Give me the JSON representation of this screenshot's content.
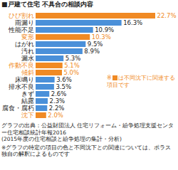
{
  "chart_data": {
    "type": "bar",
    "orientation": "horizontal",
    "title": "■戸建て住宅 不具合の相談内容",
    "categories": [
      "ひび割れ",
      "雨漏り",
      "性能不足",
      "変形",
      "はがれ",
      "汚れ",
      "漏水",
      "作動不良",
      "傾斜",
      "床鳴り",
      "排水不良",
      "きず",
      "結露",
      "腐食・腐朽",
      "沈下"
    ],
    "values": [
      22.7,
      16.3,
      10.9,
      10.3,
      9.5,
      8.9,
      5.3,
      5.1,
      5.0,
      3.6,
      3.5,
      2.6,
      2.3,
      2.2,
      2.0
    ],
    "value_labels": [
      "22.7%",
      "16.3%",
      "10.9%",
      "10.3%",
      "9.5%",
      "8.9%",
      "5.3%",
      "5.1%",
      "5.0%",
      "3.6%",
      "3.5%",
      "2.6%",
      "2.3%",
      "2.2%",
      "2.0%"
    ],
    "color": "#4a90d9",
    "colors": [
      "#f08a24",
      "#4a90d9",
      "#4a90d9",
      "#f08a24",
      "#4a90d9",
      "#4a90d9",
      "#4a90d9",
      "#f08a24",
      "#f08a24",
      "#4a90d9",
      "#4a90d9",
      "#4a90d9",
      "#4a90d9",
      "#4a90d9",
      "#f08a24"
    ],
    "data_labels": true,
    "tick_labels": "y",
    "annotations": [
      {
        "prefix": "※",
        "text": "は不同沈下に関連する項目です"
      }
    ],
    "source": [
      "グラフの出典：公益財団法人 住宅リフォーム・紛争処理支援センター住宅相談統計年報2016",
      "(2015年度の住宅相談と紛争処理の集計・分析)"
    ],
    "footnote": "※グラフの特定の項目の色と不同沈下との関連については、ポラス独自の解釈によるものです"
  }
}
